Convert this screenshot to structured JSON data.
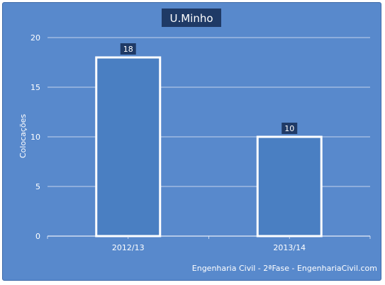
{
  "chart_data": {
    "type": "bar",
    "title": "U.Minho",
    "ylabel": "Colocações",
    "xlabel": "",
    "categories": [
      "2012/13",
      "2013/14"
    ],
    "values": [
      18,
      10
    ],
    "ylim": [
      0,
      20
    ],
    "yticks": [
      0,
      5,
      10,
      15,
      20
    ],
    "grid": true,
    "legend": "none"
  },
  "footer": "Engenharia Civil - 2ªFase - EngenhariaCivil.com",
  "colors": {
    "background": "#5889cc",
    "bar_fill": "#4a7fc2",
    "bar_border": "#ffffff",
    "label_box": "#1f3a66",
    "title_box": "#1f3a66",
    "grid": "#e8eef8",
    "text": "#ffffff"
  }
}
